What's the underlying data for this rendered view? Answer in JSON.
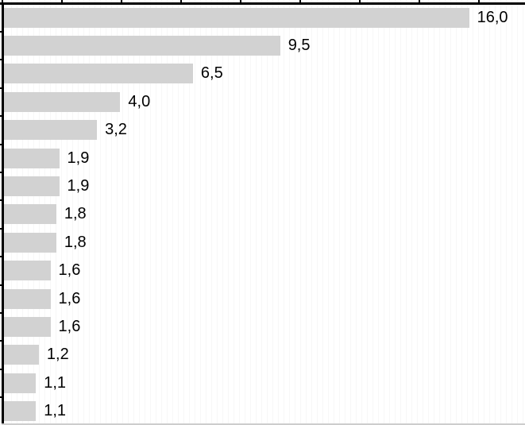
{
  "chart_data": {
    "type": "bar",
    "orientation": "horizontal",
    "title": "",
    "xlabel": "",
    "ylabel": "",
    "categories_visible": false,
    "values": [
      16.0,
      9.5,
      6.5,
      4.0,
      3.2,
      1.9,
      1.9,
      1.8,
      1.8,
      1.6,
      1.6,
      1.6,
      1.2,
      1.1,
      1.1
    ],
    "value_labels": [
      "16,0",
      "9,5",
      "6,5",
      "4,0",
      "3,2",
      "1,9",
      "1,9",
      "1,8",
      "1,8",
      "1,6",
      "1,6",
      "1,6",
      "1,2",
      "1,1",
      "1,1"
    ],
    "decimal_separator": ",",
    "xlim": [
      0,
      18
    ],
    "x_axis": {
      "ticks_labeled": false,
      "tick_interval": 2,
      "tick_count": 9,
      "position": "top"
    },
    "y_axis": {
      "ticks_labeled": false,
      "tick_per_row": true,
      "position": "left"
    },
    "grid": "faint vertical dotted lines",
    "legend": "none",
    "colors": {
      "bar_fill": "#d2d2d2",
      "axis": "#000000",
      "label_text": "#000000",
      "background": "#ffffff",
      "bottom_edge_line": "#cdcdcd"
    }
  }
}
